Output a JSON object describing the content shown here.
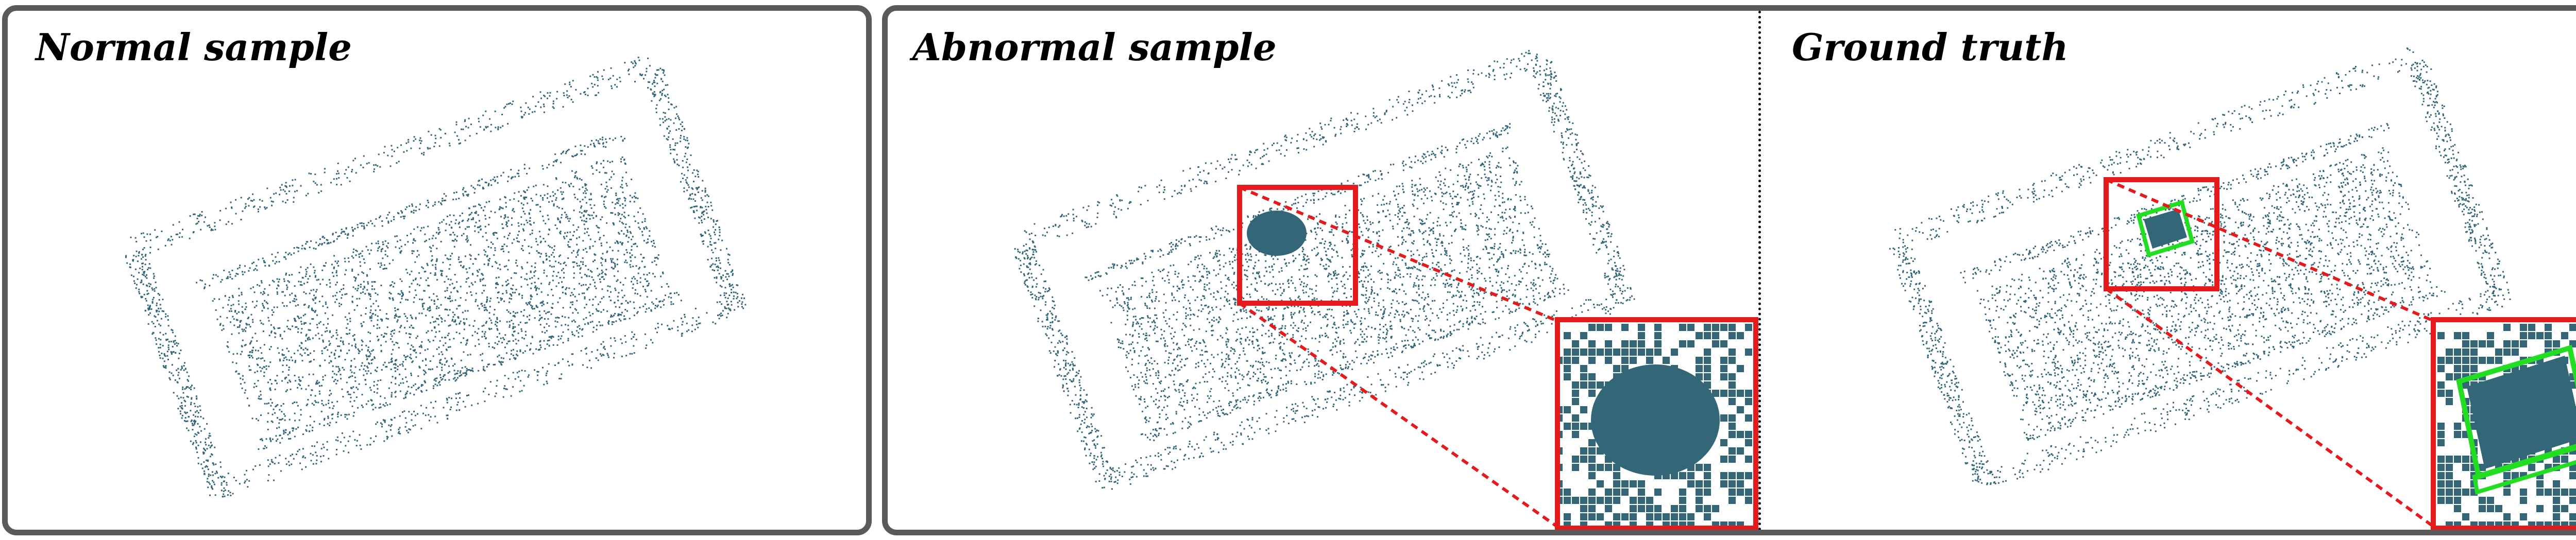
{
  "panels": [
    {
      "id": "normal",
      "title": "Normal sample"
    },
    {
      "id": "abnormal",
      "title": "Abnormal sample"
    },
    {
      "id": "ground_truth",
      "title": "Ground truth"
    }
  ],
  "colors": {
    "points": "#336677",
    "panel_border": "#5a5a5a",
    "zoom_box": "#e41a1c",
    "ground_truth_box": "#22dd22",
    "divider": "#000000"
  }
}
